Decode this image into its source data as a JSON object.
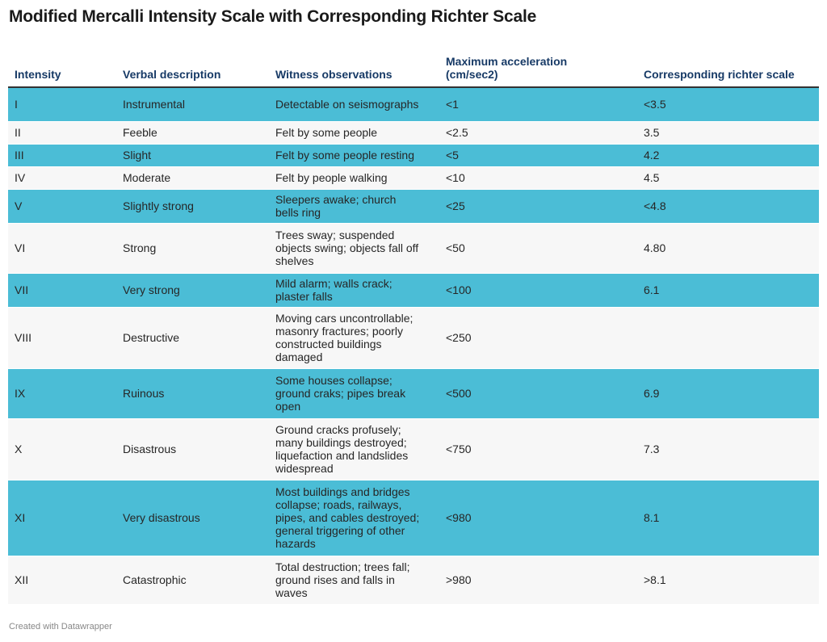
{
  "title": "Modified Mercalli Intensity Scale with Corresponding Richter Scale",
  "colors": {
    "highlight_row": "#4bbdd6",
    "plain_row": "#f7f7f7",
    "header_text": "#173a66"
  },
  "table": {
    "headers": [
      "Intensity",
      "Verbal description",
      "Witness observations",
      "Maximum acceleration (cm/sec2)",
      "Corresponding richter scale"
    ],
    "rows": [
      {
        "intensity": "I",
        "description": "Instrumental",
        "observations": "Detectable on seismographs",
        "acceleration": "<1",
        "richter": "<3.5",
        "highlight": true
      },
      {
        "intensity": "II",
        "description": "Feeble",
        "observations": "Felt by some people",
        "acceleration": "<2.5",
        "richter": "3.5",
        "highlight": false
      },
      {
        "intensity": "III",
        "description": "Slight",
        "observations": "Felt by some people resting",
        "acceleration": "<5",
        "richter": "4.2",
        "highlight": true
      },
      {
        "intensity": "IV",
        "description": "Moderate",
        "observations": "Felt by people walking",
        "acceleration": "<10",
        "richter": "4.5",
        "highlight": false
      },
      {
        "intensity": "V",
        "description": "Slightly strong",
        "observations": "Sleepers awake; church bells ring",
        "acceleration": "<25",
        "richter": "<4.8",
        "highlight": true
      },
      {
        "intensity": "VI",
        "description": "Strong",
        "observations": "Trees sway; suspended objects swing; objects fall off shelves",
        "acceleration": "<50",
        "richter": "4.80",
        "highlight": false
      },
      {
        "intensity": "VII",
        "description": "Very strong",
        "observations": "Mild alarm; walls crack; plaster falls",
        "acceleration": "<100",
        "richter": "6.1",
        "highlight": true
      },
      {
        "intensity": "VIII",
        "description": "Destructive",
        "observations": "Moving cars uncontrollable; masonry fractures; poorly constructed buildings damaged",
        "acceleration": "<250",
        "richter": "",
        "highlight": false
      },
      {
        "intensity": "IX",
        "description": "Ruinous",
        "observations": "Some houses collapse; ground craks; pipes break open",
        "acceleration": "<500",
        "richter": "6.9",
        "highlight": true
      },
      {
        "intensity": "X",
        "description": "Disastrous",
        "observations": "Ground cracks profusely; many buildings destroyed; liquefaction and landslides widespread",
        "acceleration": "<750",
        "richter": "7.3",
        "highlight": false
      },
      {
        "intensity": "XI",
        "description": "Very disastrous",
        "observations": "Most buildings and bridges collapse; roads, railways, pipes, and cables destroyed; general triggering of other hazards",
        "acceleration": "<980",
        "richter": "8.1",
        "highlight": true
      },
      {
        "intensity": "XII",
        "description": "Catastrophic",
        "observations": "Total destruction; trees fall; ground rises and falls in waves",
        "acceleration": ">980",
        "richter": ">8.1",
        "highlight": false
      }
    ]
  },
  "footer": "Created with Datawrapper"
}
